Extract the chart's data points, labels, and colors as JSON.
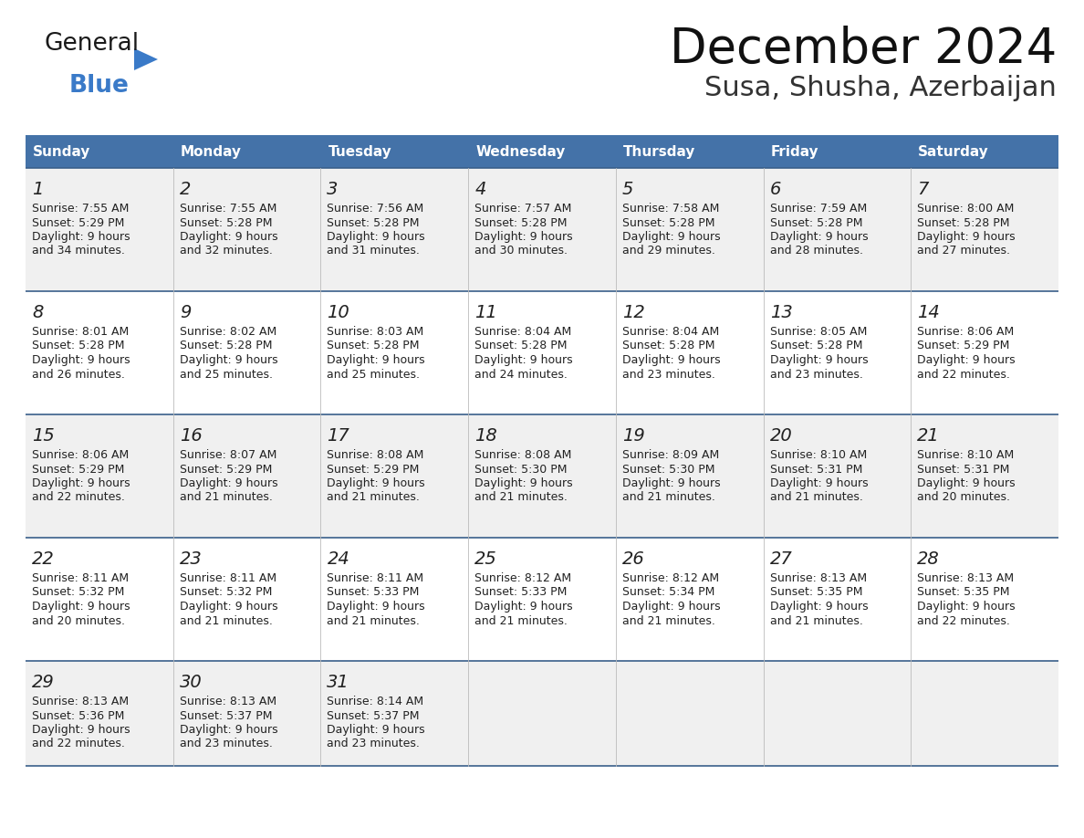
{
  "title": "December 2024",
  "subtitle": "Susa, Shusha, Azerbaijan",
  "header_color": "#4472a8",
  "header_text_color": "#ffffff",
  "cell_bg_even": "#f0f0f0",
  "cell_bg_odd": "#ffffff",
  "day_names": [
    "Sunday",
    "Monday",
    "Tuesday",
    "Wednesday",
    "Thursday",
    "Friday",
    "Saturday"
  ],
  "line_color": "#3a5f8a",
  "text_color": "#222222",
  "calendar_data": [
    [
      {
        "day": "1",
        "sunrise": "7:55 AM",
        "sunset": "5:29 PM",
        "daylight_h": "9 hours",
        "daylight_m": "and 34 minutes."
      },
      {
        "day": "2",
        "sunrise": "7:55 AM",
        "sunset": "5:28 PM",
        "daylight_h": "9 hours",
        "daylight_m": "and 32 minutes."
      },
      {
        "day": "3",
        "sunrise": "7:56 AM",
        "sunset": "5:28 PM",
        "daylight_h": "9 hours",
        "daylight_m": "and 31 minutes."
      },
      {
        "day": "4",
        "sunrise": "7:57 AM",
        "sunset": "5:28 PM",
        "daylight_h": "9 hours",
        "daylight_m": "and 30 minutes."
      },
      {
        "day": "5",
        "sunrise": "7:58 AM",
        "sunset": "5:28 PM",
        "daylight_h": "9 hours",
        "daylight_m": "and 29 minutes."
      },
      {
        "day": "6",
        "sunrise": "7:59 AM",
        "sunset": "5:28 PM",
        "daylight_h": "9 hours",
        "daylight_m": "and 28 minutes."
      },
      {
        "day": "7",
        "sunrise": "8:00 AM",
        "sunset": "5:28 PM",
        "daylight_h": "9 hours",
        "daylight_m": "and 27 minutes."
      }
    ],
    [
      {
        "day": "8",
        "sunrise": "8:01 AM",
        "sunset": "5:28 PM",
        "daylight_h": "9 hours",
        "daylight_m": "and 26 minutes."
      },
      {
        "day": "9",
        "sunrise": "8:02 AM",
        "sunset": "5:28 PM",
        "daylight_h": "9 hours",
        "daylight_m": "and 25 minutes."
      },
      {
        "day": "10",
        "sunrise": "8:03 AM",
        "sunset": "5:28 PM",
        "daylight_h": "9 hours",
        "daylight_m": "and 25 minutes."
      },
      {
        "day": "11",
        "sunrise": "8:04 AM",
        "sunset": "5:28 PM",
        "daylight_h": "9 hours",
        "daylight_m": "and 24 minutes."
      },
      {
        "day": "12",
        "sunrise": "8:04 AM",
        "sunset": "5:28 PM",
        "daylight_h": "9 hours",
        "daylight_m": "and 23 minutes."
      },
      {
        "day": "13",
        "sunrise": "8:05 AM",
        "sunset": "5:28 PM",
        "daylight_h": "9 hours",
        "daylight_m": "and 23 minutes."
      },
      {
        "day": "14",
        "sunrise": "8:06 AM",
        "sunset": "5:29 PM",
        "daylight_h": "9 hours",
        "daylight_m": "and 22 minutes."
      }
    ],
    [
      {
        "day": "15",
        "sunrise": "8:06 AM",
        "sunset": "5:29 PM",
        "daylight_h": "9 hours",
        "daylight_m": "and 22 minutes."
      },
      {
        "day": "16",
        "sunrise": "8:07 AM",
        "sunset": "5:29 PM",
        "daylight_h": "9 hours",
        "daylight_m": "and 21 minutes."
      },
      {
        "day": "17",
        "sunrise": "8:08 AM",
        "sunset": "5:29 PM",
        "daylight_h": "9 hours",
        "daylight_m": "and 21 minutes."
      },
      {
        "day": "18",
        "sunrise": "8:08 AM",
        "sunset": "5:30 PM",
        "daylight_h": "9 hours",
        "daylight_m": "and 21 minutes."
      },
      {
        "day": "19",
        "sunrise": "8:09 AM",
        "sunset": "5:30 PM",
        "daylight_h": "9 hours",
        "daylight_m": "and 21 minutes."
      },
      {
        "day": "20",
        "sunrise": "8:10 AM",
        "sunset": "5:31 PM",
        "daylight_h": "9 hours",
        "daylight_m": "and 21 minutes."
      },
      {
        "day": "21",
        "sunrise": "8:10 AM",
        "sunset": "5:31 PM",
        "daylight_h": "9 hours",
        "daylight_m": "and 20 minutes."
      }
    ],
    [
      {
        "day": "22",
        "sunrise": "8:11 AM",
        "sunset": "5:32 PM",
        "daylight_h": "9 hours",
        "daylight_m": "and 20 minutes."
      },
      {
        "day": "23",
        "sunrise": "8:11 AM",
        "sunset": "5:32 PM",
        "daylight_h": "9 hours",
        "daylight_m": "and 21 minutes."
      },
      {
        "day": "24",
        "sunrise": "8:11 AM",
        "sunset": "5:33 PM",
        "daylight_h": "9 hours",
        "daylight_m": "and 21 minutes."
      },
      {
        "day": "25",
        "sunrise": "8:12 AM",
        "sunset": "5:33 PM",
        "daylight_h": "9 hours",
        "daylight_m": "and 21 minutes."
      },
      {
        "day": "26",
        "sunrise": "8:12 AM",
        "sunset": "5:34 PM",
        "daylight_h": "9 hours",
        "daylight_m": "and 21 minutes."
      },
      {
        "day": "27",
        "sunrise": "8:13 AM",
        "sunset": "5:35 PM",
        "daylight_h": "9 hours",
        "daylight_m": "and 21 minutes."
      },
      {
        "day": "28",
        "sunrise": "8:13 AM",
        "sunset": "5:35 PM",
        "daylight_h": "9 hours",
        "daylight_m": "and 22 minutes."
      }
    ],
    [
      {
        "day": "29",
        "sunrise": "8:13 AM",
        "sunset": "5:36 PM",
        "daylight_h": "9 hours",
        "daylight_m": "and 22 minutes."
      },
      {
        "day": "30",
        "sunrise": "8:13 AM",
        "sunset": "5:37 PM",
        "daylight_h": "9 hours",
        "daylight_m": "and 23 minutes."
      },
      {
        "day": "31",
        "sunrise": "8:14 AM",
        "sunset": "5:37 PM",
        "daylight_h": "9 hours",
        "daylight_m": "and 23 minutes."
      },
      null,
      null,
      null,
      null
    ]
  ],
  "logo_color_general": "#1a1a1a",
  "logo_color_blue": "#3a7ac8",
  "logo_triangle_color": "#3a7ac8",
  "logo_text_general": "General",
  "logo_text_blue": "Blue"
}
